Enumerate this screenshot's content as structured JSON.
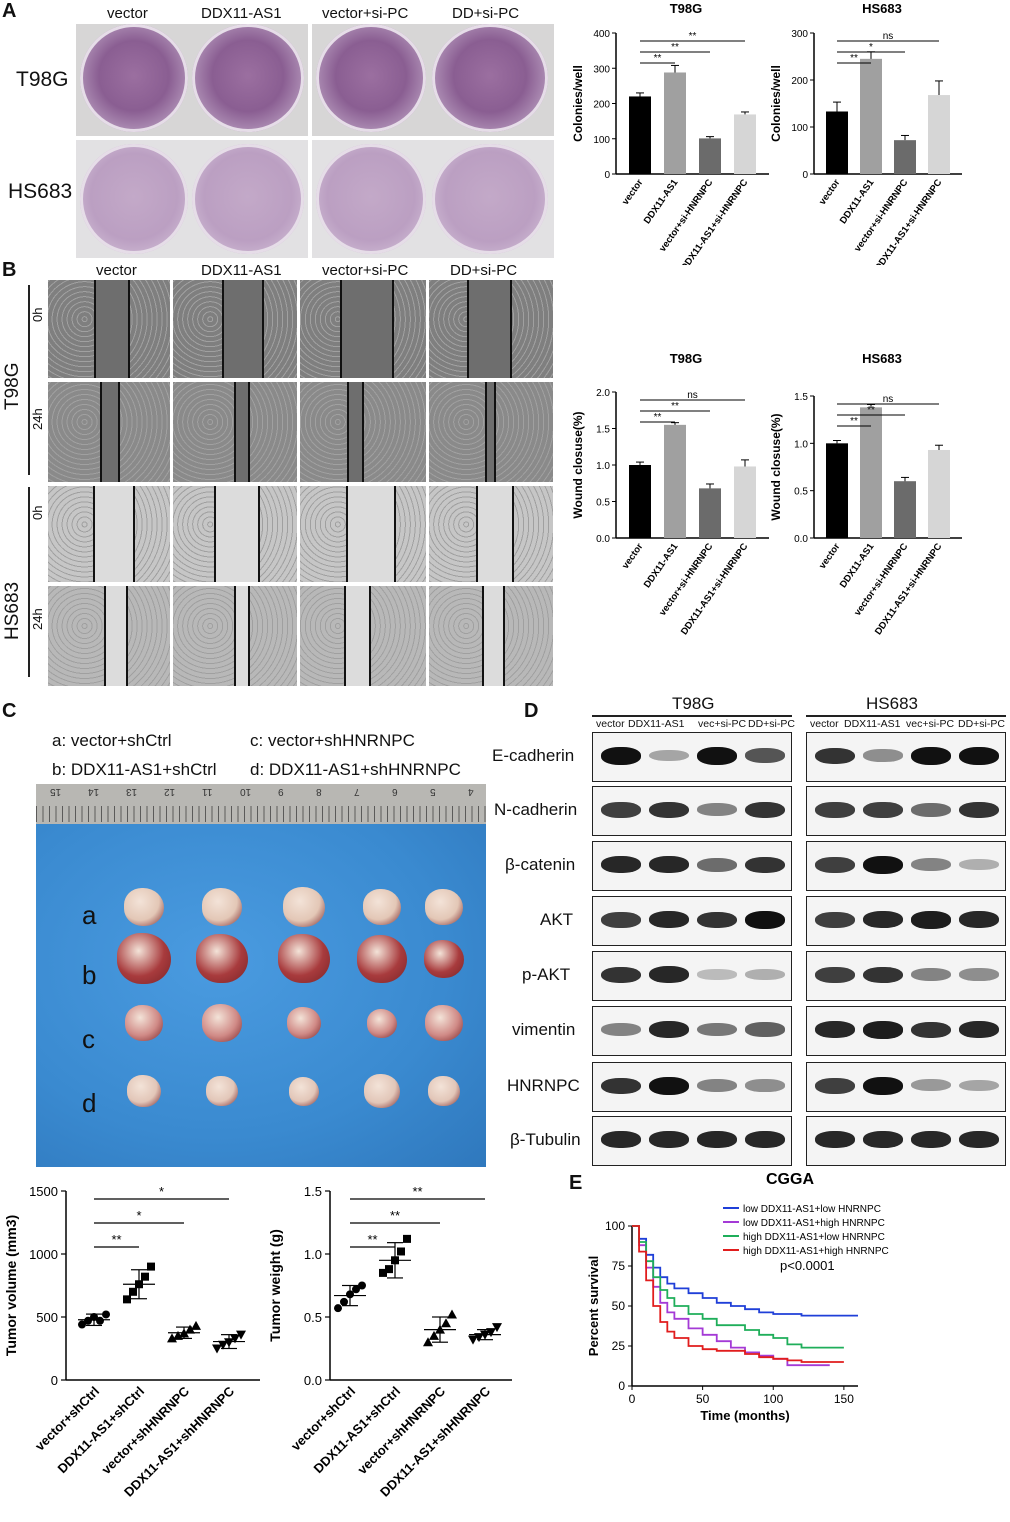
{
  "panels": {
    "a": "A",
    "b": "B",
    "c": "C",
    "d": "D",
    "e": "E"
  },
  "colonyImg": {
    "columns": [
      "vector",
      "DDX11-AS1",
      "vector+si-PC",
      "DD+si-PC"
    ],
    "rows": [
      "T98G",
      "HS683"
    ]
  },
  "woundImg": {
    "columns": [
      "vector",
      "DDX11-AS1",
      "vector+si-PC",
      "DD+si-PC"
    ],
    "cells": [
      "T98G",
      "HS683"
    ],
    "times": [
      "0h",
      "24h"
    ]
  },
  "barCategories": [
    "vector",
    "DDX11-AS1",
    "vector+si-HNRNPC",
    "DDX11-AS1+si-HNRNPC"
  ],
  "barColors": [
    "#000000",
    "#a0a0a0",
    "#6b6b6b",
    "#d6d6d6"
  ],
  "sig": {
    "ss": "**",
    "s": "*",
    "ns": "ns"
  },
  "tumor": {
    "legend": [
      "a: vector+shCtrl",
      "b: DDX11-AS1+shCtrl",
      "c: vector+shHNRNPC",
      "d: DDX11-AS1+shHNRNPC"
    ],
    "rowLetters": [
      "a",
      "b",
      "c",
      "d"
    ],
    "rulerNumbers": [
      "15",
      "14",
      "13",
      "12",
      "11",
      "10",
      "9",
      "8",
      "7",
      "6",
      "5",
      "4"
    ],
    "categories": [
      "vector+shCtrl",
      "DDX11-AS1+shCtrl",
      "vector+shHNRNPC",
      "DDX11-AS1+shHNRNPC"
    ]
  },
  "blot": {
    "cells": [
      "T98G",
      "HS683"
    ],
    "lanes": [
      "vector",
      "DDX11-AS1",
      "vec+si-PC",
      "DD+si-PC"
    ],
    "proteins": [
      "E-cadherin",
      "N-cadherin",
      "β-catenin",
      "AKT",
      "p-AKT",
      "vimentin",
      "HNRNPC",
      "β-Tubulin"
    ]
  },
  "chart_data": [
    {
      "type": "bar",
      "title": "T98G",
      "ylabel": "Colonies/well",
      "ylim": [
        0,
        400
      ],
      "yticks": [
        0,
        100,
        200,
        300,
        400
      ],
      "categories": [
        "vector",
        "DDX11-AS1",
        "vector+si-HNRNPC",
        "DDX11-AS1+si-HNRNPC"
      ],
      "values": [
        220,
        288,
        101,
        169
      ],
      "errors": [
        10,
        20,
        5,
        7
      ],
      "annotations": [
        {
          "from": 0,
          "to": 1,
          "label": "**"
        },
        {
          "from": 0,
          "to": 2,
          "label": "**"
        },
        {
          "from": 0,
          "to": 3,
          "label": "**"
        }
      ]
    },
    {
      "type": "bar",
      "title": "HS683",
      "ylabel": "Colonies/well",
      "ylim": [
        0,
        300
      ],
      "yticks": [
        0,
        100,
        200,
        300
      ],
      "categories": [
        "vector",
        "DDX11-AS1",
        "vector+si-HNRNPC",
        "DDX11-AS1+si-HNRNPC"
      ],
      "values": [
        133,
        245,
        72,
        168
      ],
      "errors": [
        20,
        15,
        10,
        30
      ],
      "annotations": [
        {
          "from": 0,
          "to": 1,
          "label": "**"
        },
        {
          "from": 0,
          "to": 2,
          "label": "*"
        },
        {
          "from": 0,
          "to": 3,
          "label": "ns"
        }
      ]
    },
    {
      "type": "bar",
      "title": "T98G",
      "ylabel": "Wound closuse(%)",
      "ylim": [
        0,
        2.0
      ],
      "yticks": [
        "0.0",
        "0.5",
        "1.0",
        "1.5",
        "2.0"
      ],
      "categories": [
        "vector",
        "DDX11-AS1",
        "vector+si-HNRNPC",
        "DDX11-AS1+si-HNRNPC"
      ],
      "values": [
        1.0,
        1.55,
        0.68,
        0.98
      ],
      "errors": [
        0.04,
        0.03,
        0.06,
        0.09
      ],
      "annotations": [
        {
          "from": 0,
          "to": 1,
          "label": "**"
        },
        {
          "from": 0,
          "to": 2,
          "label": "**"
        },
        {
          "from": 0,
          "to": 3,
          "label": "ns"
        }
      ]
    },
    {
      "type": "bar",
      "title": "HS683",
      "ylabel": "Wound closuse(%)",
      "ylim": [
        0,
        1.5
      ],
      "yticks": [
        "0.0",
        "0.5",
        "1.0",
        "1.5"
      ],
      "categories": [
        "vector",
        "DDX11-AS1",
        "vector+si-HNRNPC",
        "DDX11-AS1+si-HNRNPC"
      ],
      "values": [
        1.0,
        1.38,
        0.6,
        0.93
      ],
      "errors": [
        0.03,
        0.03,
        0.04,
        0.05
      ],
      "annotations": [
        {
          "from": 0,
          "to": 1,
          "label": "**"
        },
        {
          "from": 0,
          "to": 2,
          "label": "**"
        },
        {
          "from": 0,
          "to": 3,
          "label": "ns"
        }
      ]
    },
    {
      "type": "scatter",
      "ylabel": "Tumor volume (mm3)",
      "ylim": [
        0,
        1500
      ],
      "yticks": [
        0,
        500,
        1000,
        1500
      ],
      "categories": [
        "vector+shCtrl",
        "DDX11-AS1+shCtrl",
        "vector+shHNRNPC",
        "DDX11-AS1+shHNRNPC"
      ],
      "points": [
        [
          440,
          470,
          500,
          470,
          520
        ],
        [
          640,
          700,
          760,
          820,
          900
        ],
        [
          330,
          350,
          370,
          400,
          430
        ],
        [
          250,
          280,
          300,
          330,
          360
        ]
      ],
      "means": [
        478,
        760,
        375,
        305
      ],
      "sd": [
        45,
        115,
        45,
        55
      ],
      "annotations": [
        {
          "from": 0,
          "to": 1,
          "label": "**"
        },
        {
          "from": 0,
          "to": 2,
          "label": "*"
        },
        {
          "from": 0,
          "to": 3,
          "label": "*"
        }
      ]
    },
    {
      "type": "scatter",
      "ylabel": "Tumor weight (g)",
      "ylim": [
        0,
        1.5
      ],
      "yticks": [
        "0.0",
        "0.5",
        "1.0",
        "1.5"
      ],
      "categories": [
        "vector+shCtrl",
        "DDX11-AS1+shCtrl",
        "vector+shHNRNPC",
        "DDX11-AS1+shHNRNPC"
      ],
      "points": [
        [
          0.57,
          0.62,
          0.68,
          0.72,
          0.75
        ],
        [
          0.85,
          0.88,
          0.95,
          1.02,
          1.12
        ],
        [
          0.3,
          0.35,
          0.4,
          0.45,
          0.52
        ],
        [
          0.32,
          0.34,
          0.36,
          0.38,
          0.42
        ]
      ],
      "means": [
        0.67,
        0.95,
        0.4,
        0.36
      ],
      "sd": [
        0.08,
        0.14,
        0.1,
        0.04
      ],
      "annotations": [
        {
          "from": 0,
          "to": 1,
          "label": "**"
        },
        {
          "from": 0,
          "to": 2,
          "label": "**"
        },
        {
          "from": 0,
          "to": 3,
          "label": "**"
        }
      ]
    },
    {
      "type": "line",
      "title": "CGGA",
      "xlabel": "Time (months)",
      "ylabel": "Percent survival",
      "xlim": [
        0,
        160
      ],
      "ylim": [
        0,
        100
      ],
      "xticks": [
        0,
        50,
        100,
        150
      ],
      "yticks": [
        0,
        25,
        50,
        75,
        100
      ],
      "pvalue": "p<0.0001",
      "series": [
        {
          "name": "low DDX11-AS1+low HNRNPC",
          "color": "#1f3fd8",
          "x": [
            0,
            5,
            10,
            15,
            20,
            25,
            30,
            40,
            50,
            60,
            70,
            80,
            90,
            100,
            110,
            120,
            130,
            140,
            150,
            160
          ],
          "y": [
            100,
            92,
            82,
            74,
            68,
            64,
            61,
            58,
            55,
            52,
            50,
            48,
            46,
            45,
            45,
            44,
            44,
            44,
            44,
            44
          ]
        },
        {
          "name": "low DDX11-AS1+high HNRNPC",
          "color": "#a43ad6",
          "x": [
            0,
            5,
            10,
            15,
            20,
            25,
            30,
            40,
            50,
            60,
            70,
            80,
            90,
            100,
            110,
            120,
            130,
            140
          ],
          "y": [
            100,
            88,
            74,
            62,
            52,
            46,
            42,
            36,
            32,
            28,
            24,
            21,
            19,
            17,
            13,
            13,
            13,
            13
          ]
        },
        {
          "name": "high DDX11-AS1+low HNRNPC",
          "color": "#1fae5a",
          "x": [
            0,
            5,
            10,
            15,
            20,
            25,
            30,
            40,
            50,
            60,
            70,
            80,
            90,
            100,
            110,
            120,
            130,
            140,
            150
          ],
          "y": [
            100,
            90,
            78,
            68,
            60,
            55,
            50,
            45,
            42,
            38,
            38,
            35,
            32,
            30,
            26,
            24,
            24,
            24,
            24
          ]
        },
        {
          "name": "high DDX11-AS1+high HNRNPC",
          "color": "#e11d1d",
          "x": [
            0,
            5,
            10,
            15,
            20,
            25,
            30,
            40,
            50,
            60,
            70,
            80,
            90,
            100,
            110,
            120,
            130,
            140,
            150
          ],
          "y": [
            100,
            84,
            66,
            50,
            40,
            34,
            30,
            25,
            23,
            22,
            22,
            20,
            18,
            17,
            16,
            15,
            15,
            15,
            15
          ]
        }
      ]
    }
  ]
}
